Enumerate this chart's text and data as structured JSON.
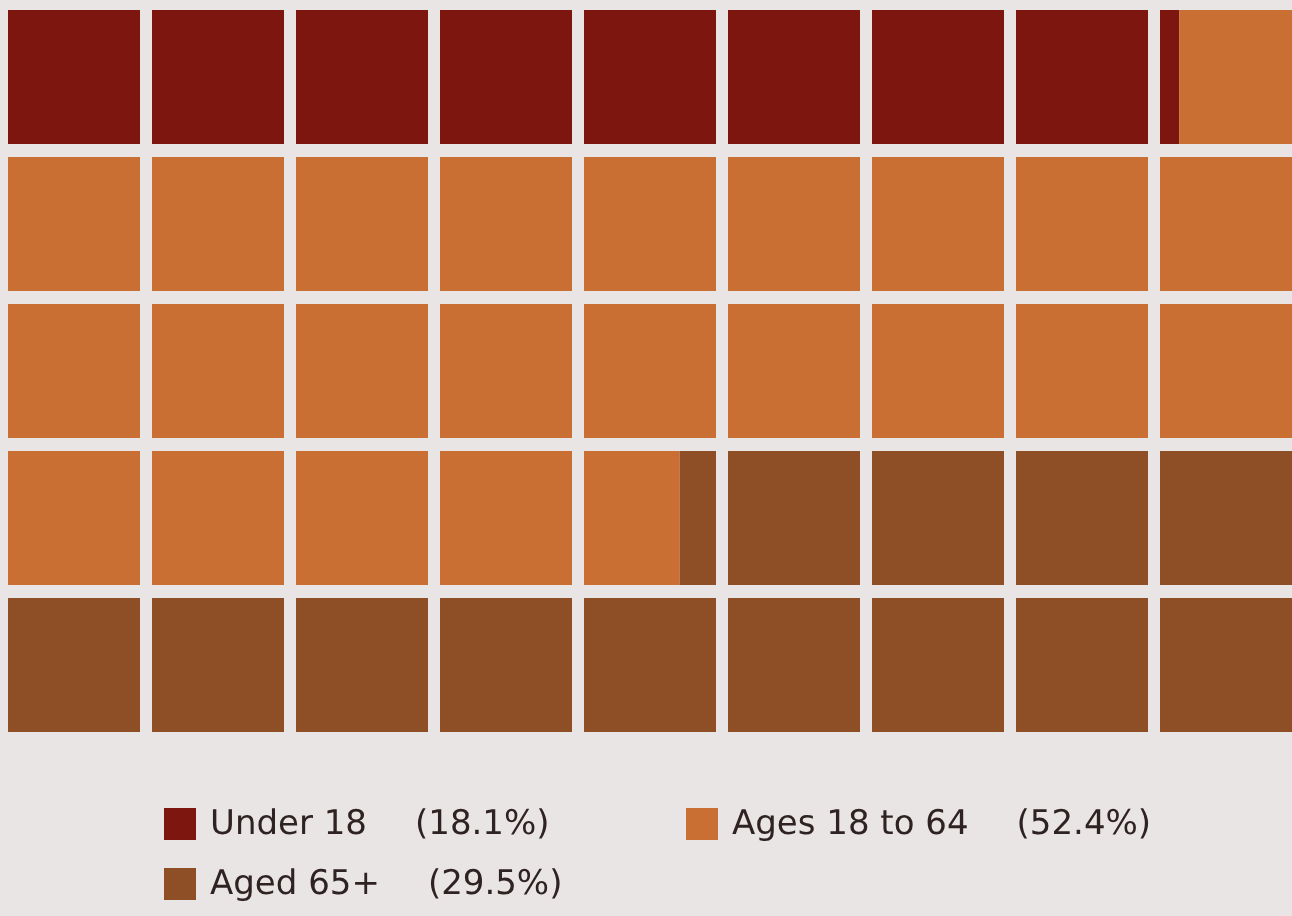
{
  "chart_data": {
    "type": "other",
    "categories": [
      "Under 18",
      "Ages 18 to 64",
      "Aged 65+"
    ],
    "values": [
      18.1,
      52.4,
      29.5
    ],
    "colors": [
      "#7d160e",
      "#c96f34",
      "#8e4f27"
    ],
    "value_labels": [
      "(18.1%)",
      "(52.4%)",
      "(29.5%)"
    ]
  }
}
